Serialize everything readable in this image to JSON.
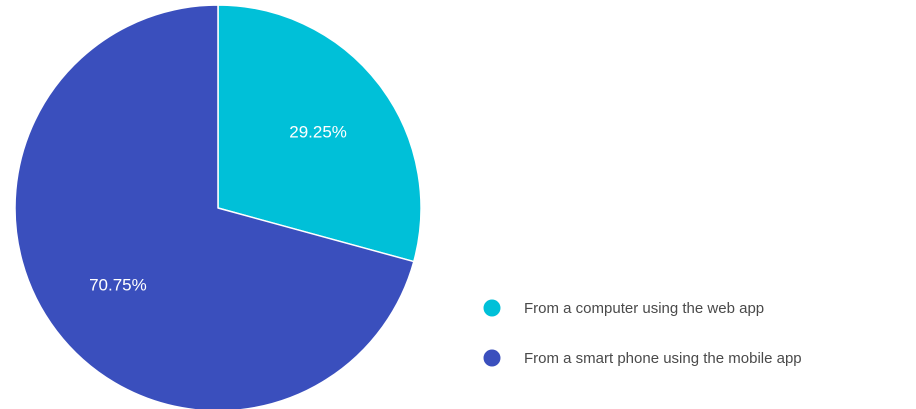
{
  "chart_data": {
    "type": "pie",
    "title": "",
    "legend_position": "bottom-right",
    "start_angle_deg": 0,
    "direction": "clockwise",
    "slices": [
      {
        "label": "From a computer using the web app",
        "value": 29.25,
        "value_label": "29.25%",
        "color": "#00c0d8"
      },
      {
        "label": "From a smart phone using the mobile app",
        "value": 70.75,
        "value_label": "70.75%",
        "color": "#3a4fbd"
      }
    ]
  }
}
